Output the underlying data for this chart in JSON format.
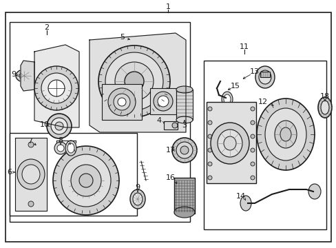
{
  "bg_color": "#f5f5f5",
  "line_color": "#1a1a1a",
  "fig_width": 4.89,
  "fig_height": 3.6,
  "dpi": 100
}
